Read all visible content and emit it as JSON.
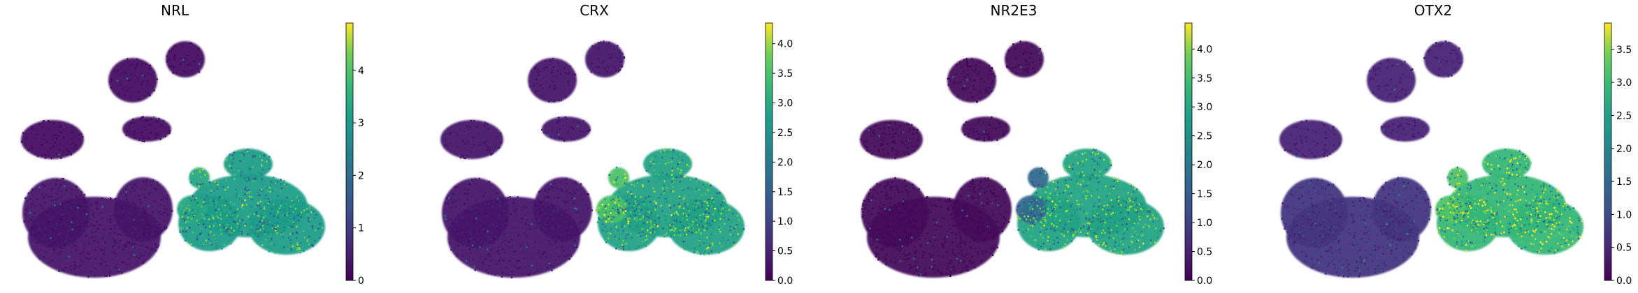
{
  "chart_data": [
    {
      "type": "scatter",
      "title": "NRL",
      "xlabel": "",
      "ylabel": "",
      "grid": false,
      "colormap": "viridis",
      "colorbar": {
        "range": [
          0,
          4.9
        ],
        "ticks": [
          0,
          1,
          2,
          3,
          4
        ],
        "tick_labels": [
          "0",
          "1",
          "2",
          "3",
          "4"
        ]
      },
      "expression_level": {
        "left_cluster": 0.3,
        "upper_clusters": 0.2,
        "right_cluster": 2.7,
        "bridge": 2.9
      }
    },
    {
      "type": "scatter",
      "title": "CRX",
      "xlabel": "",
      "ylabel": "",
      "grid": false,
      "colormap": "viridis",
      "colorbar": {
        "range": [
          0,
          4.35
        ],
        "ticks": [
          0,
          0.5,
          1,
          1.5,
          2,
          2.5,
          3,
          3.5,
          4
        ],
        "tick_labels": [
          "0.0",
          "0.5",
          "1.0",
          "1.5",
          "2.0",
          "2.5",
          "3.0",
          "3.5",
          "4.0"
        ]
      },
      "expression_level": {
        "left_cluster": 0.3,
        "upper_clusters": 0.3,
        "right_cluster": 2.5,
        "bridge": 3.1
      }
    },
    {
      "type": "scatter",
      "title": "NR2E3",
      "xlabel": "",
      "ylabel": "",
      "grid": false,
      "colormap": "viridis",
      "colorbar": {
        "range": [
          0,
          4.45
        ],
        "ticks": [
          0,
          0.5,
          1,
          1.5,
          2,
          2.5,
          3,
          3.5,
          4
        ],
        "tick_labels": [
          "0.0",
          "0.5",
          "1.0",
          "1.5",
          "2.0",
          "2.5",
          "3.0",
          "3.5",
          "4.0"
        ]
      },
      "expression_level": {
        "left_cluster": 0.1,
        "upper_clusters": 0.1,
        "right_cluster": 2.6,
        "bridge": 1.5
      }
    },
    {
      "type": "scatter",
      "title": "OTX2",
      "xlabel": "",
      "ylabel": "",
      "grid": false,
      "colormap": "viridis",
      "colorbar": {
        "range": [
          0,
          3.9
        ],
        "ticks": [
          0,
          0.5,
          1,
          1.5,
          2,
          2.5,
          3,
          3.5
        ],
        "tick_labels": [
          "0.0",
          "0.5",
          "1.0",
          "1.5",
          "2.0",
          "2.5",
          "3.0",
          "3.5"
        ]
      },
      "expression_level": {
        "left_cluster": 0.6,
        "upper_clusters": 0.4,
        "right_cluster": 2.6,
        "bridge": 2.8
      }
    }
  ]
}
